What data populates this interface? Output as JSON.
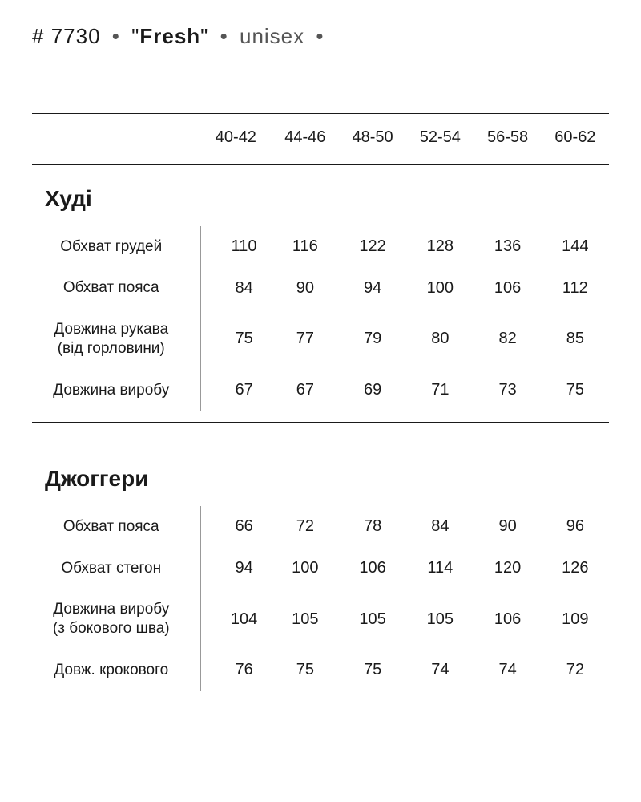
{
  "header": {
    "hash": "#",
    "number": "7730",
    "bullet": "•",
    "quote_open": "\"",
    "quote_close": "\"",
    "name": "Fresh",
    "type": "unisex"
  },
  "sizes": [
    "40-42",
    "44-46",
    "48-50",
    "52-54",
    "56-58",
    "60-62"
  ],
  "sections": [
    {
      "title": "Худі",
      "rows": [
        {
          "label": "Обхват грудей",
          "values": [
            "110",
            "116",
            "122",
            "128",
            "136",
            "144"
          ]
        },
        {
          "label": "Обхват пояса",
          "values": [
            "84",
            "90",
            "94",
            "100",
            "106",
            "112"
          ]
        },
        {
          "label": "Довжина рукава\n(від горловини)",
          "values": [
            "75",
            "77",
            "79",
            "80",
            "82",
            "85"
          ]
        },
        {
          "label": "Довжина виробу",
          "values": [
            "67",
            "67",
            "69",
            "71",
            "73",
            "75"
          ]
        }
      ]
    },
    {
      "title": "Джоггери",
      "rows": [
        {
          "label": "Обхват пояса",
          "values": [
            "66",
            "72",
            "78",
            "84",
            "90",
            "96"
          ]
        },
        {
          "label": "Обхват стегон",
          "values": [
            "94",
            "100",
            "106",
            "114",
            "120",
            "126"
          ]
        },
        {
          "label": "Довжина виробу\n(з бокового шва)",
          "values": [
            "104",
            "105",
            "105",
            "105",
            "106",
            "109"
          ]
        },
        {
          "label": "Довж. крокового",
          "values": [
            "76",
            "75",
            "75",
            "74",
            "74",
            "72"
          ]
        }
      ]
    }
  ],
  "style": {
    "background_color": "#ffffff",
    "text_color": "#1a1a1a",
    "divider_color": "#1a1a1a",
    "vline_color": "#999999",
    "header_fontsize": 26,
    "section_title_fontsize": 28,
    "body_fontsize": 20,
    "label_fontsize": 19
  }
}
